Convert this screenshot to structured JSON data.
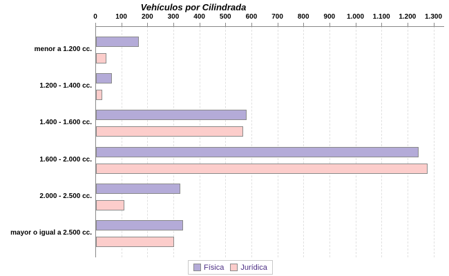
{
  "chart_data": {
    "type": "bar",
    "orientation": "horizontal",
    "title": "Vehículos por Cilindrada",
    "categories": [
      "menor a 1.200 cc.",
      "1.200 - 1.400 cc.",
      "1.400 - 1.600 cc.",
      "1.600 - 2.000 cc.",
      "2.000 - 2.500 cc.",
      "mayor o igual a 2.500 cc."
    ],
    "series": [
      {
        "name": "Física",
        "color": "#B4ABD8",
        "values": [
          165,
          60,
          580,
          1240,
          325,
          335
        ]
      },
      {
        "name": "Jurídica",
        "color": "#FCCDCB",
        "values": [
          40,
          25,
          565,
          1275,
          110,
          300
        ]
      }
    ],
    "x_ticks": [
      {
        "value": 0,
        "label": "0"
      },
      {
        "value": 100,
        "label": "100"
      },
      {
        "value": 200,
        "label": "200"
      },
      {
        "value": 300,
        "label": "300"
      },
      {
        "value": 400,
        "label": "400"
      },
      {
        "value": 500,
        "label": "500"
      },
      {
        "value": 600,
        "label": "600"
      },
      {
        "value": 700,
        "label": "700"
      },
      {
        "value": 800,
        "label": "800"
      },
      {
        "value": 900,
        "label": "900"
      },
      {
        "value": 1000,
        "label": "1.000"
      },
      {
        "value": 1100,
        "label": "1.100"
      },
      {
        "value": 1200,
        "label": "1.200"
      },
      {
        "value": 1300,
        "label": "1.300"
      }
    ],
    "xlim": [
      0,
      1300
    ],
    "grid": "vertical-dashed",
    "legend_position": "bottom-center",
    "colors": {
      "bar_border": "#8A8A8A",
      "axis": "#888888",
      "grid": "#E0E0E0",
      "title": "#000000",
      "legend_text": "#4B2D83",
      "legend_border": "#C9C9C9"
    }
  }
}
